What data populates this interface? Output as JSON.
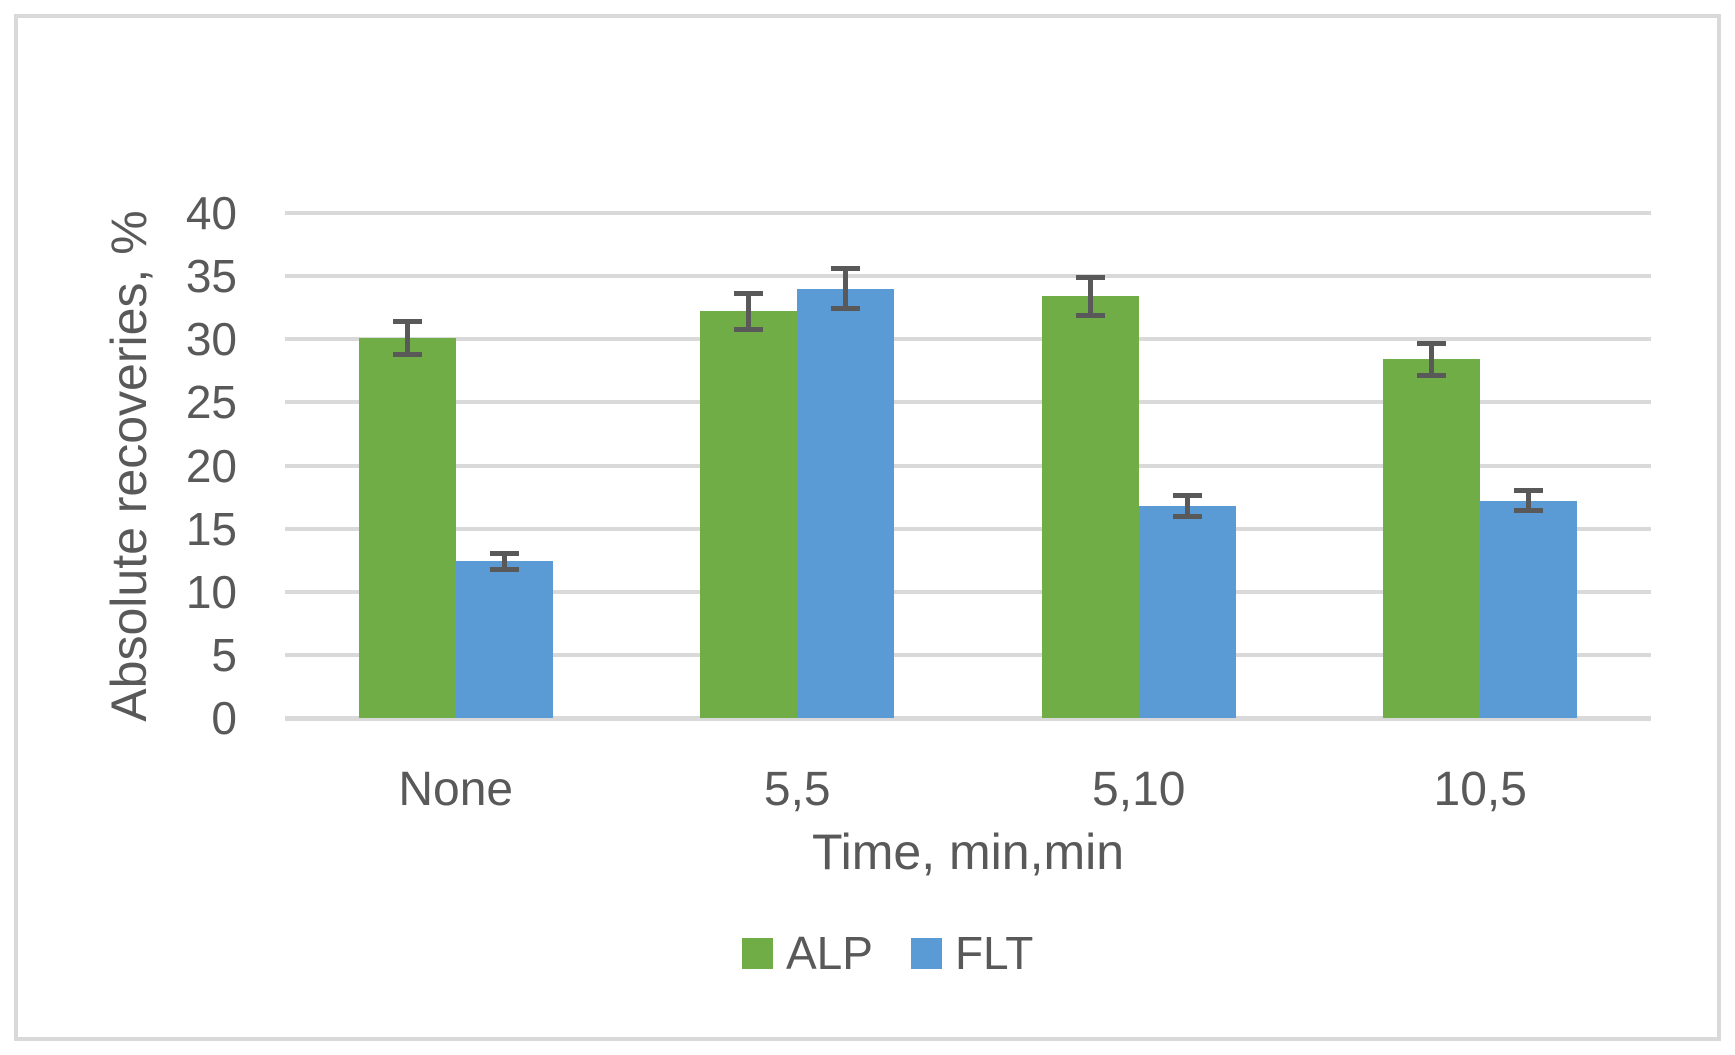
{
  "chart_data": {
    "type": "bar",
    "title": "",
    "xlabel": "Time, min,min",
    "ylabel": "Absolute recoveries, %",
    "categories": [
      "None",
      "5,5",
      "5,10",
      "10,5"
    ],
    "series": [
      {
        "name": "ALP",
        "color": "#70AD47",
        "values": [
          30.1,
          32.2,
          33.4,
          28.4
        ],
        "errors": [
          1.5,
          1.6,
          1.7,
          1.5
        ]
      },
      {
        "name": "FLT",
        "color": "#5B9BD5",
        "values": [
          12.4,
          34.0,
          16.8,
          17.2
        ],
        "errors": [
          0.8,
          1.8,
          1.0,
          1.0
        ]
      }
    ],
    "ylim": [
      0,
      40
    ],
    "yticks": [
      0,
      5,
      10,
      15,
      20,
      25,
      30,
      35,
      40
    ],
    "grid": true,
    "legend_position": "bottom",
    "gridline_color": "#D9D9D9",
    "error_bar_color": "#595959",
    "text_color": "#595959",
    "frame_color": "#D9D9D9"
  }
}
